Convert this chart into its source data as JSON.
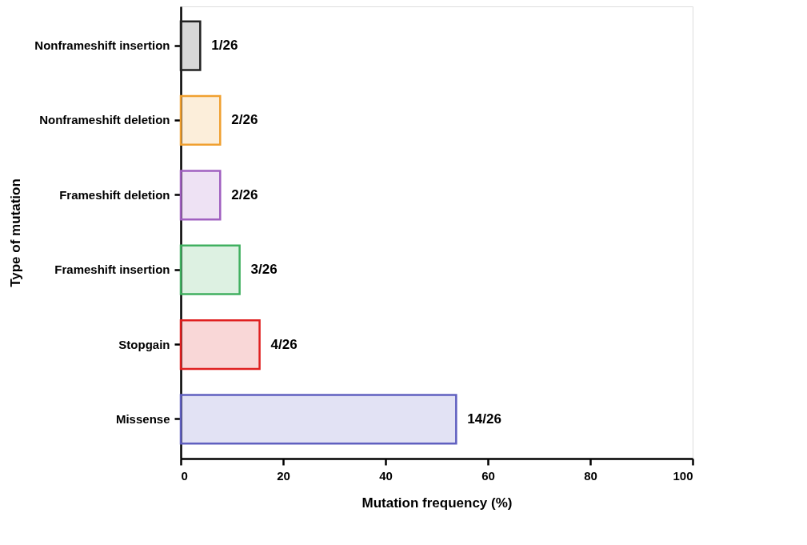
{
  "chart_data": {
    "type": "bar",
    "orientation": "horizontal",
    "xlabel": "Mutation frequency (%)",
    "ylabel": "Type of mutation",
    "categories": [
      "Nonframeshift insertion",
      "Nonframeshift deletion",
      "Frameshift deletion",
      "Frameshift insertion",
      "Stopgain",
      "Missense"
    ],
    "values": [
      3.8,
      7.7,
      7.7,
      11.5,
      15.4,
      53.8
    ],
    "value_labels": [
      "1/26",
      "2/26",
      "2/26",
      "3/26",
      "4/26",
      "14/26"
    ],
    "colors": [
      "#222222",
      "#f0a030",
      "#a060c0",
      "#40b060",
      "#e02020",
      "#6060c0"
    ],
    "xlim": [
      0,
      100
    ],
    "xticks": [
      0,
      20,
      40,
      60,
      80,
      100
    ],
    "grid": false
  }
}
